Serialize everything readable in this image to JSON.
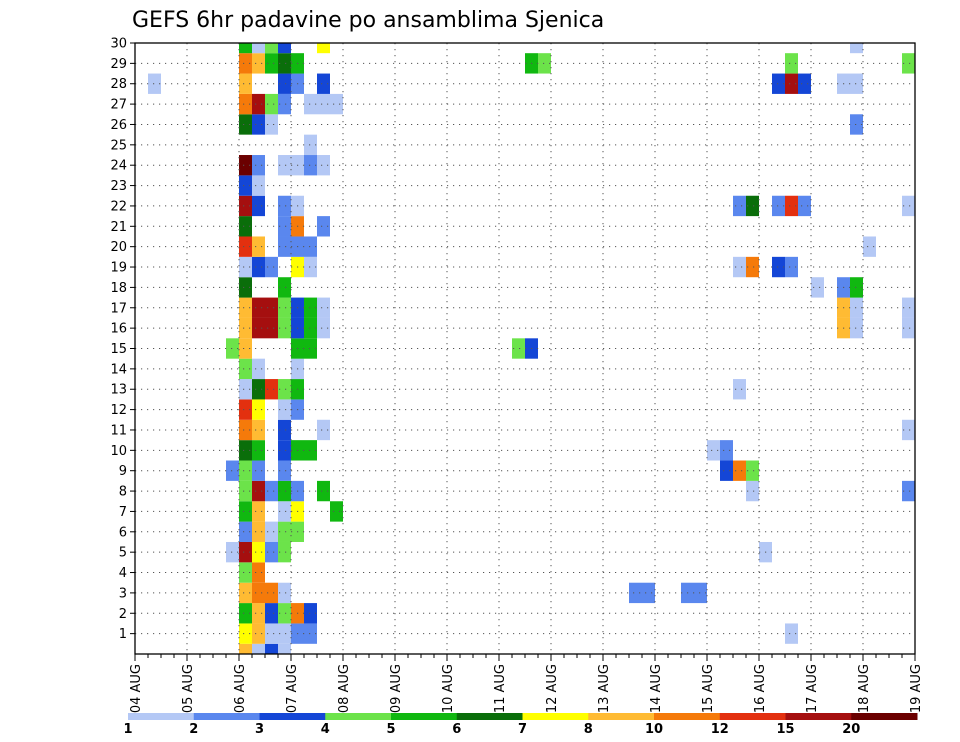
{
  "chart_data": {
    "type": "heatmap",
    "title": "GEFS 6hr padavine po ansamblima Sjenica",
    "xlabel": "",
    "ylabel": "",
    "x_ticks": [
      "04 AUG",
      "05 AUG",
      "06 AUG",
      "07 AUG",
      "08 AUG",
      "09 AUG",
      "10 AUG",
      "11 AUG",
      "12 AUG",
      "13 AUG",
      "14 AUG",
      "15 AUG",
      "16 AUG",
      "17 AUG",
      "18 AUG",
      "19 AUG"
    ],
    "y_ticks": [
      1,
      2,
      3,
      4,
      5,
      6,
      7,
      8,
      9,
      10,
      11,
      12,
      13,
      14,
      15,
      16,
      17,
      18,
      19,
      20,
      21,
      22,
      23,
      24,
      25,
      26,
      27,
      28,
      29,
      30
    ],
    "x_unit": "6-hour step from 04 AUG 00",
    "grid": true,
    "legend_placement": "bottom",
    "color_levels": [
      {
        "label": "1",
        "color": "#b4c8f5"
      },
      {
        "label": "2",
        "color": "#5a87ee"
      },
      {
        "label": "3",
        "color": "#1446d6"
      },
      {
        "label": "4",
        "color": "#6ce34a"
      },
      {
        "label": "5",
        "color": "#10b810"
      },
      {
        "label": "6",
        "color": "#0a6e0a"
      },
      {
        "label": "7",
        "color": "#ffff00"
      },
      {
        "label": "8",
        "color": "#ffbb33"
      },
      {
        "label": "10",
        "color": "#f57a0a"
      },
      {
        "label": "12",
        "color": "#e3300f"
      },
      {
        "label": "15",
        "color": "#a50f0f"
      },
      {
        "label": "20",
        "color": "#6b0000"
      }
    ],
    "cells": [
      [
        0,
        8,
        8
      ],
      [
        0,
        9,
        1
      ],
      [
        0,
        10,
        3
      ],
      [
        0,
        11,
        1
      ],
      [
        1,
        8,
        7
      ],
      [
        1,
        9,
        8
      ],
      [
        1,
        10,
        1
      ],
      [
        1,
        11,
        1
      ],
      [
        1,
        12,
        2
      ],
      [
        1,
        13,
        2
      ],
      [
        1,
        50,
        1
      ],
      [
        2,
        8,
        5
      ],
      [
        2,
        9,
        8
      ],
      [
        2,
        10,
        3
      ],
      [
        2,
        11,
        4
      ],
      [
        2,
        12,
        9
      ],
      [
        2,
        13,
        3
      ],
      [
        3,
        8,
        8
      ],
      [
        3,
        9,
        9
      ],
      [
        3,
        10,
        9
      ],
      [
        3,
        11,
        1
      ],
      [
        3,
        38,
        2
      ],
      [
        3,
        39,
        2
      ],
      [
        3,
        42,
        2
      ],
      [
        3,
        43,
        2
      ],
      [
        4,
        8,
        4
      ],
      [
        4,
        9,
        9
      ],
      [
        5,
        7,
        1
      ],
      [
        5,
        8,
        11
      ],
      [
        5,
        9,
        7
      ],
      [
        5,
        10,
        2
      ],
      [
        5,
        11,
        4
      ],
      [
        5,
        48,
        1
      ],
      [
        6,
        8,
        2
      ],
      [
        6,
        9,
        8
      ],
      [
        6,
        10,
        1
      ],
      [
        6,
        11,
        4
      ],
      [
        6,
        12,
        4
      ],
      [
        7,
        8,
        5
      ],
      [
        7,
        9,
        8
      ],
      [
        7,
        11,
        1
      ],
      [
        7,
        12,
        7
      ],
      [
        7,
        15,
        5
      ],
      [
        8,
        8,
        4
      ],
      [
        8,
        9,
        11
      ],
      [
        8,
        10,
        2
      ],
      [
        8,
        11,
        5
      ],
      [
        8,
        12,
        2
      ],
      [
        8,
        14,
        5
      ],
      [
        8,
        47,
        1
      ],
      [
        8,
        59,
        2
      ],
      [
        9,
        7,
        2
      ],
      [
        9,
        8,
        4
      ],
      [
        9,
        9,
        2
      ],
      [
        9,
        11,
        2
      ],
      [
        9,
        45,
        3
      ],
      [
        9,
        46,
        9
      ],
      [
        9,
        47,
        4
      ],
      [
        10,
        8,
        6
      ],
      [
        10,
        9,
        5
      ],
      [
        10,
        11,
        3
      ],
      [
        10,
        12,
        5
      ],
      [
        10,
        13,
        5
      ],
      [
        10,
        44,
        1
      ],
      [
        10,
        45,
        2
      ],
      [
        11,
        8,
        9
      ],
      [
        11,
        9,
        8
      ],
      [
        11,
        11,
        3
      ],
      [
        11,
        14,
        1
      ],
      [
        11,
        59,
        1
      ],
      [
        12,
        8,
        10
      ],
      [
        12,
        9,
        7
      ],
      [
        12,
        11,
        1
      ],
      [
        12,
        12,
        2
      ],
      [
        13,
        8,
        1
      ],
      [
        13,
        9,
        6
      ],
      [
        13,
        10,
        10
      ],
      [
        13,
        11,
        4
      ],
      [
        13,
        12,
        5
      ],
      [
        13,
        46,
        1
      ],
      [
        14,
        8,
        4
      ],
      [
        14,
        9,
        1
      ],
      [
        14,
        12,
        1
      ],
      [
        15,
        7,
        4
      ],
      [
        15,
        8,
        8
      ],
      [
        15,
        12,
        5
      ],
      [
        15,
        13,
        5
      ],
      [
        15,
        29,
        4
      ],
      [
        15,
        30,
        3
      ],
      [
        16,
        8,
        8
      ],
      [
        16,
        9,
        11
      ],
      [
        16,
        10,
        11
      ],
      [
        16,
        11,
        4
      ],
      [
        16,
        12,
        3
      ],
      [
        16,
        13,
        5
      ],
      [
        16,
        14,
        1
      ],
      [
        16,
        54,
        8
      ],
      [
        16,
        55,
        1
      ],
      [
        16,
        59,
        1
      ],
      [
        17,
        8,
        8
      ],
      [
        17,
        9,
        11
      ],
      [
        17,
        10,
        11
      ],
      [
        17,
        11,
        4
      ],
      [
        17,
        12,
        3
      ],
      [
        17,
        13,
        5
      ],
      [
        17,
        14,
        1
      ],
      [
        17,
        54,
        8
      ],
      [
        17,
        55,
        1
      ],
      [
        17,
        59,
        1
      ],
      [
        18,
        8,
        6
      ],
      [
        18,
        11,
        5
      ],
      [
        18,
        52,
        1
      ],
      [
        18,
        54,
        2
      ],
      [
        18,
        55,
        5
      ],
      [
        19,
        8,
        1
      ],
      [
        19,
        9,
        3
      ],
      [
        19,
        10,
        2
      ],
      [
        19,
        12,
        7
      ],
      [
        19,
        13,
        1
      ],
      [
        19,
        46,
        1
      ],
      [
        19,
        47,
        9
      ],
      [
        19,
        49,
        3
      ],
      [
        19,
        50,
        2
      ],
      [
        20,
        8,
        10
      ],
      [
        20,
        9,
        8
      ],
      [
        20,
        11,
        2
      ],
      [
        20,
        12,
        2
      ],
      [
        20,
        13,
        2
      ],
      [
        20,
        56,
        1
      ],
      [
        21,
        8,
        6
      ],
      [
        21,
        11,
        2
      ],
      [
        21,
        12,
        9
      ],
      [
        21,
        14,
        2
      ],
      [
        22,
        8,
        11
      ],
      [
        22,
        9,
        3
      ],
      [
        22,
        11,
        2
      ],
      [
        22,
        12,
        1
      ],
      [
        22,
        46,
        2
      ],
      [
        22,
        47,
        6
      ],
      [
        22,
        49,
        2
      ],
      [
        22,
        50,
        10
      ],
      [
        22,
        51,
        2
      ],
      [
        22,
        59,
        1
      ],
      [
        23,
        8,
        3
      ],
      [
        23,
        9,
        1
      ],
      [
        24,
        8,
        12
      ],
      [
        24,
        9,
        2
      ],
      [
        24,
        11,
        1
      ],
      [
        24,
        12,
        1
      ],
      [
        24,
        13,
        2
      ],
      [
        24,
        14,
        1
      ],
      [
        25,
        13,
        1
      ],
      [
        26,
        8,
        6
      ],
      [
        26,
        9,
        3
      ],
      [
        26,
        10,
        1
      ],
      [
        26,
        55,
        2
      ],
      [
        27,
        8,
        9
      ],
      [
        27,
        9,
        11
      ],
      [
        27,
        10,
        4
      ],
      [
        27,
        11,
        2
      ],
      [
        27,
        13,
        1
      ],
      [
        27,
        14,
        1
      ],
      [
        27,
        15,
        1
      ],
      [
        28,
        1,
        1
      ],
      [
        28,
        8,
        8
      ],
      [
        28,
        11,
        3
      ],
      [
        28,
        12,
        2
      ],
      [
        28,
        14,
        3
      ],
      [
        28,
        49,
        3
      ],
      [
        28,
        50,
        11
      ],
      [
        28,
        51,
        3
      ],
      [
        28,
        54,
        1
      ],
      [
        28,
        55,
        1
      ],
      [
        29,
        8,
        9
      ],
      [
        29,
        9,
        8
      ],
      [
        29,
        10,
        5
      ],
      [
        29,
        11,
        6
      ],
      [
        29,
        12,
        5
      ],
      [
        29,
        30,
        5
      ],
      [
        29,
        31,
        4
      ],
      [
        29,
        50,
        4
      ],
      [
        29,
        59,
        4
      ],
      [
        30,
        8,
        5
      ],
      [
        30,
        9,
        1
      ],
      [
        30,
        10,
        4
      ],
      [
        30,
        11,
        3
      ],
      [
        30,
        14,
        7
      ],
      [
        30,
        55,
        1
      ]
    ]
  }
}
